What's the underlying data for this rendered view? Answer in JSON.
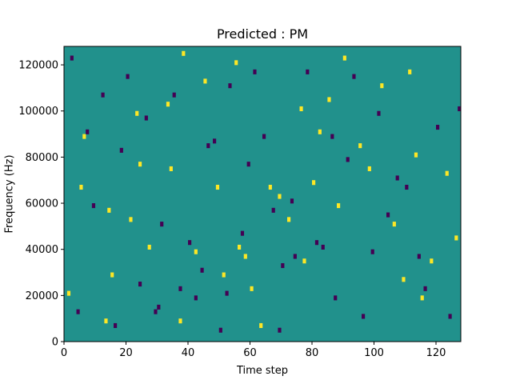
{
  "chart_data": {
    "type": "heatmap",
    "title": "Predicted : PM",
    "xlabel": "Time step",
    "ylabel": "Frequency (Hz)",
    "xlim": [
      0,
      128
    ],
    "ylim": [
      0,
      128000
    ],
    "x_ticks": [
      0,
      20,
      40,
      60,
      80,
      100,
      120
    ],
    "y_ticks": [
      0,
      20000,
      40000,
      60000,
      80000,
      100000,
      120000
    ],
    "grid": false,
    "n_time_steps": 128,
    "n_freq_bins": 64,
    "bin_hz": 2000,
    "background_level": 0,
    "colors": {
      "background": "#21918c",
      "high": "#fde725",
      "low": "#440154"
    },
    "cells": {
      "high": [
        [
          1,
          10
        ],
        [
          5,
          33
        ],
        [
          6,
          44
        ],
        [
          13,
          4
        ],
        [
          14,
          28
        ],
        [
          15,
          14
        ],
        [
          21,
          26
        ],
        [
          23,
          49
        ],
        [
          24,
          38
        ],
        [
          27,
          20
        ],
        [
          33,
          51
        ],
        [
          34,
          37
        ],
        [
          37,
          4
        ],
        [
          38,
          62
        ],
        [
          42,
          19
        ],
        [
          45,
          56
        ],
        [
          49,
          33
        ],
        [
          51,
          14
        ],
        [
          55,
          60
        ],
        [
          56,
          20
        ],
        [
          58,
          18
        ],
        [
          60,
          11
        ],
        [
          63,
          3
        ],
        [
          66,
          33
        ],
        [
          69,
          31
        ],
        [
          72,
          26
        ],
        [
          76,
          50
        ],
        [
          77,
          17
        ],
        [
          80,
          34
        ],
        [
          82,
          45
        ],
        [
          85,
          52
        ],
        [
          88,
          29
        ],
        [
          90,
          61
        ],
        [
          95,
          42
        ],
        [
          98,
          37
        ],
        [
          102,
          55
        ],
        [
          106,
          25
        ],
        [
          109,
          13
        ],
        [
          111,
          58
        ],
        [
          113,
          40
        ],
        [
          115,
          9
        ],
        [
          118,
          17
        ],
        [
          123,
          36
        ],
        [
          126,
          22
        ]
      ],
      "low": [
        [
          2,
          61
        ],
        [
          4,
          6
        ],
        [
          7,
          45
        ],
        [
          9,
          29
        ],
        [
          12,
          53
        ],
        [
          16,
          3
        ],
        [
          18,
          41
        ],
        [
          20,
          57
        ],
        [
          24,
          12
        ],
        [
          26,
          48
        ],
        [
          29,
          6
        ],
        [
          31,
          25
        ],
        [
          35,
          53
        ],
        [
          37,
          11
        ],
        [
          40,
          21
        ],
        [
          42,
          9
        ],
        [
          44,
          15
        ],
        [
          46,
          42
        ],
        [
          48,
          43
        ],
        [
          52,
          10
        ],
        [
          53,
          55
        ],
        [
          57,
          23
        ],
        [
          59,
          38
        ],
        [
          61,
          58
        ],
        [
          64,
          44
        ],
        [
          67,
          28
        ],
        [
          70,
          16
        ],
        [
          73,
          30
        ],
        [
          74,
          18
        ],
        [
          78,
          58
        ],
        [
          81,
          21
        ],
        [
          83,
          20
        ],
        [
          86,
          44
        ],
        [
          87,
          9
        ],
        [
          91,
          39
        ],
        [
          93,
          57
        ],
        [
          96,
          5
        ],
        [
          99,
          19
        ],
        [
          101,
          49
        ],
        [
          104,
          27
        ],
        [
          107,
          35
        ],
        [
          110,
          33
        ],
        [
          114,
          18
        ],
        [
          116,
          11
        ],
        [
          120,
          46
        ],
        [
          124,
          5
        ],
        [
          127,
          50
        ],
        [
          30,
          7
        ],
        [
          50,
          2
        ],
        [
          69,
          2
        ]
      ]
    }
  }
}
